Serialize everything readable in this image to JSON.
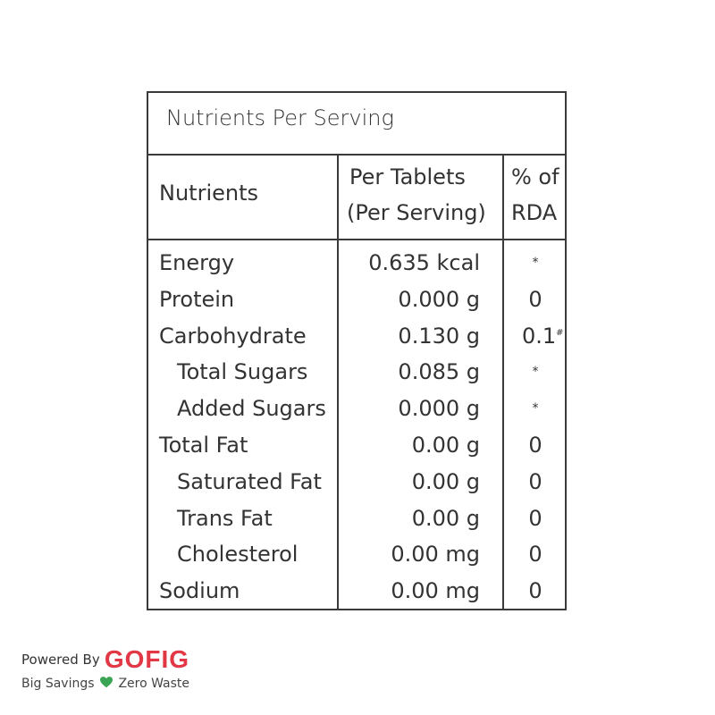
{
  "table": {
    "title": "Nutrients Per Serving",
    "headers": {
      "nutrients": "Nutrients",
      "per_tablet_line1": "Per Tablets",
      "per_tablet_line2": "(Per Serving)",
      "rda_line1": "% of",
      "rda_line2": "RDA"
    },
    "rows": [
      {
        "name": "Energy",
        "value": "0.635 kcal",
        "rda": "*",
        "indent": false
      },
      {
        "name": "Protein",
        "value": "0.000 g",
        "rda": "0",
        "indent": false
      },
      {
        "name": "Carbohydrate",
        "value": "0.130 g",
        "rda": "0.1",
        "rda_mark": "#",
        "indent": false
      },
      {
        "name": "Total Sugars",
        "value": "0.085 g",
        "rda": "*",
        "indent": true
      },
      {
        "name": "Added Sugars",
        "value": "0.000 g",
        "rda": "*",
        "indent": true
      },
      {
        "name": "Total Fat",
        "value": "0.00 g",
        "rda": "0",
        "indent": false
      },
      {
        "name": "Saturated Fat",
        "value": "0.00 g",
        "rda": "0",
        "indent": true
      },
      {
        "name": "Trans Fat",
        "value": "0.00 g",
        "rda": "0",
        "indent": true
      },
      {
        "name": "Cholesterol",
        "value": "0.00 mg",
        "rda": "0",
        "indent": true
      },
      {
        "name": "Sodium",
        "value": "0.00 mg",
        "rda": "0",
        "indent": false
      }
    ]
  },
  "footer": {
    "powered_by": "Powered By",
    "brand": "GOFIG",
    "tagline_left": "Big Savings",
    "tagline_right": "Zero Waste",
    "heart_icon": "green-heart-icon",
    "brand_color": "#e23744",
    "heart_color": "#3aa655"
  }
}
